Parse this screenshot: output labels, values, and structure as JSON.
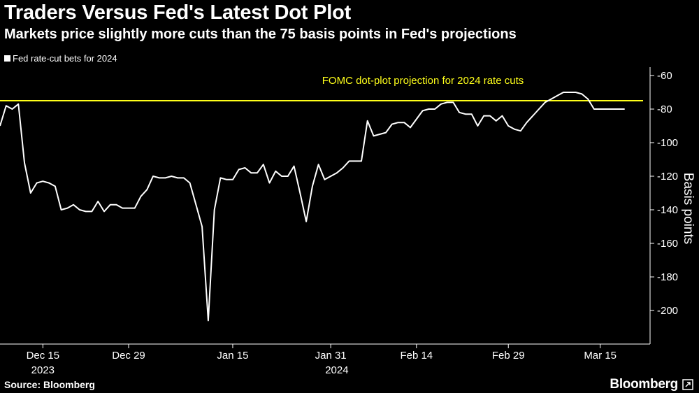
{
  "header": {
    "title": "Traders Versus Fed's Latest Dot Plot",
    "subtitle": "Markets price slightly more cuts than the 75 basis points in Fed's projections"
  },
  "footer": {
    "source": "Source: Bloomberg",
    "brand": "Bloomberg",
    "brand_icon": "expand-arrow-icon"
  },
  "colors": {
    "background": "#000000",
    "series_line": "#ffffff",
    "reference_line": "#ffff1a",
    "axis": "#ffffff"
  },
  "chart_data": {
    "type": "line",
    "title": "Traders Versus Fed's Latest Dot Plot",
    "subtitle": "Markets price slightly more cuts than the 75 basis points in Fed's projections",
    "xlabel": "",
    "ylabel": "Basis points",
    "y_axis_position": "right",
    "ylim": [
      -220,
      -55
    ],
    "y_ticks": [
      -60,
      -80,
      -100,
      -120,
      -140,
      -160,
      -180,
      -200
    ],
    "grid": false,
    "legend": {
      "position": "top-left",
      "entries": [
        "Fed rate-cut bets for 2024"
      ]
    },
    "x_tick_labels": [
      {
        "label": "Dec 15",
        "date": "2023-12-15"
      },
      {
        "label": "Dec 29",
        "date": "2023-12-29"
      },
      {
        "label": "Jan 15",
        "date": "2024-01-15"
      },
      {
        "label": "Jan 31",
        "date": "2024-01-31"
      },
      {
        "label": "Feb 14",
        "date": "2024-02-14"
      },
      {
        "label": "Feb 29",
        "date": "2024-02-29"
      },
      {
        "label": "Mar 15",
        "date": "2024-03-15"
      }
    ],
    "year_labels": [
      {
        "label": "2023",
        "date": "2023-12-15"
      },
      {
        "label": "2024",
        "date": "2024-02-01"
      }
    ],
    "reference_lines": [
      {
        "label": "FOMC dot-plot projection for 2024 rate cuts",
        "y": -75
      }
    ],
    "series": [
      {
        "name": "Fed rate-cut bets for 2024",
        "x": [
          "2023-12-08",
          "2023-12-09",
          "2023-12-10",
          "2023-12-11",
          "2023-12-12",
          "2023-12-13",
          "2023-12-14",
          "2023-12-15",
          "2023-12-16",
          "2023-12-17",
          "2023-12-18",
          "2023-12-19",
          "2023-12-20",
          "2023-12-21",
          "2023-12-22",
          "2023-12-23",
          "2023-12-24",
          "2023-12-25",
          "2023-12-26",
          "2023-12-27",
          "2023-12-28",
          "2023-12-29",
          "2023-12-30",
          "2023-12-31",
          "2024-01-01",
          "2024-01-02",
          "2024-01-03",
          "2024-01-04",
          "2024-01-05",
          "2024-01-06",
          "2024-01-07",
          "2024-01-08",
          "2024-01-09",
          "2024-01-10",
          "2024-01-11",
          "2024-01-12",
          "2024-01-13",
          "2024-01-14",
          "2024-01-15",
          "2024-01-16",
          "2024-01-17",
          "2024-01-18",
          "2024-01-19",
          "2024-01-20",
          "2024-01-21",
          "2024-01-22",
          "2024-01-23",
          "2024-01-24",
          "2024-01-25",
          "2024-01-26",
          "2024-01-27",
          "2024-01-28",
          "2024-01-29",
          "2024-01-30",
          "2024-01-31",
          "2024-02-01",
          "2024-02-02",
          "2024-02-03",
          "2024-02-04",
          "2024-02-05",
          "2024-02-06",
          "2024-02-07",
          "2024-02-08",
          "2024-02-09",
          "2024-02-10",
          "2024-02-11",
          "2024-02-12",
          "2024-02-13",
          "2024-02-14",
          "2024-02-15",
          "2024-02-16",
          "2024-02-17",
          "2024-02-18",
          "2024-02-19",
          "2024-02-20",
          "2024-02-21",
          "2024-02-22",
          "2024-02-23",
          "2024-02-24",
          "2024-02-25",
          "2024-02-26",
          "2024-02-27",
          "2024-02-28",
          "2024-02-29",
          "2024-03-01",
          "2024-03-02",
          "2024-03-03",
          "2024-03-04",
          "2024-03-05",
          "2024-03-06",
          "2024-03-07",
          "2024-03-08",
          "2024-03-09",
          "2024-03-10",
          "2024-03-11",
          "2024-03-12",
          "2024-03-13",
          "2024-03-14",
          "2024-03-15",
          "2024-03-16",
          "2024-03-17",
          "2024-03-18",
          "2024-03-19"
        ],
        "values": [
          -90,
          -78,
          -80,
          -77,
          -112,
          -130,
          -124,
          -123,
          -124,
          -126,
          -140,
          -139,
          -137,
          -140,
          -141,
          -141,
          -135,
          -141,
          -137,
          -137,
          -139,
          -139,
          -139,
          -132,
          -128,
          -120,
          -121,
          -121,
          -120,
          -121,
          -121,
          -124,
          -137,
          -150,
          -206,
          -140,
          -121,
          -122,
          -122,
          -116,
          -115,
          -118,
          -118,
          -113,
          -124,
          -117,
          -120,
          -120,
          -114,
          -130,
          -147,
          -126,
          -113,
          -122,
          -120,
          -118,
          -115,
          -111,
          -111,
          -111,
          -87,
          -96,
          -95,
          -94,
          -89,
          -88,
          -88,
          -91,
          -86,
          -81,
          -80,
          -80,
          -77,
          -76,
          -76,
          -82,
          -83,
          -83,
          -90,
          -84,
          -84,
          -87,
          -84,
          -90,
          -92,
          -93,
          -88,
          -84,
          -80,
          -76,
          -74,
          -72,
          -70,
          -70,
          -70,
          -71,
          -74,
          -80,
          -80,
          -80,
          -80,
          -80,
          -80
        ]
      }
    ]
  }
}
